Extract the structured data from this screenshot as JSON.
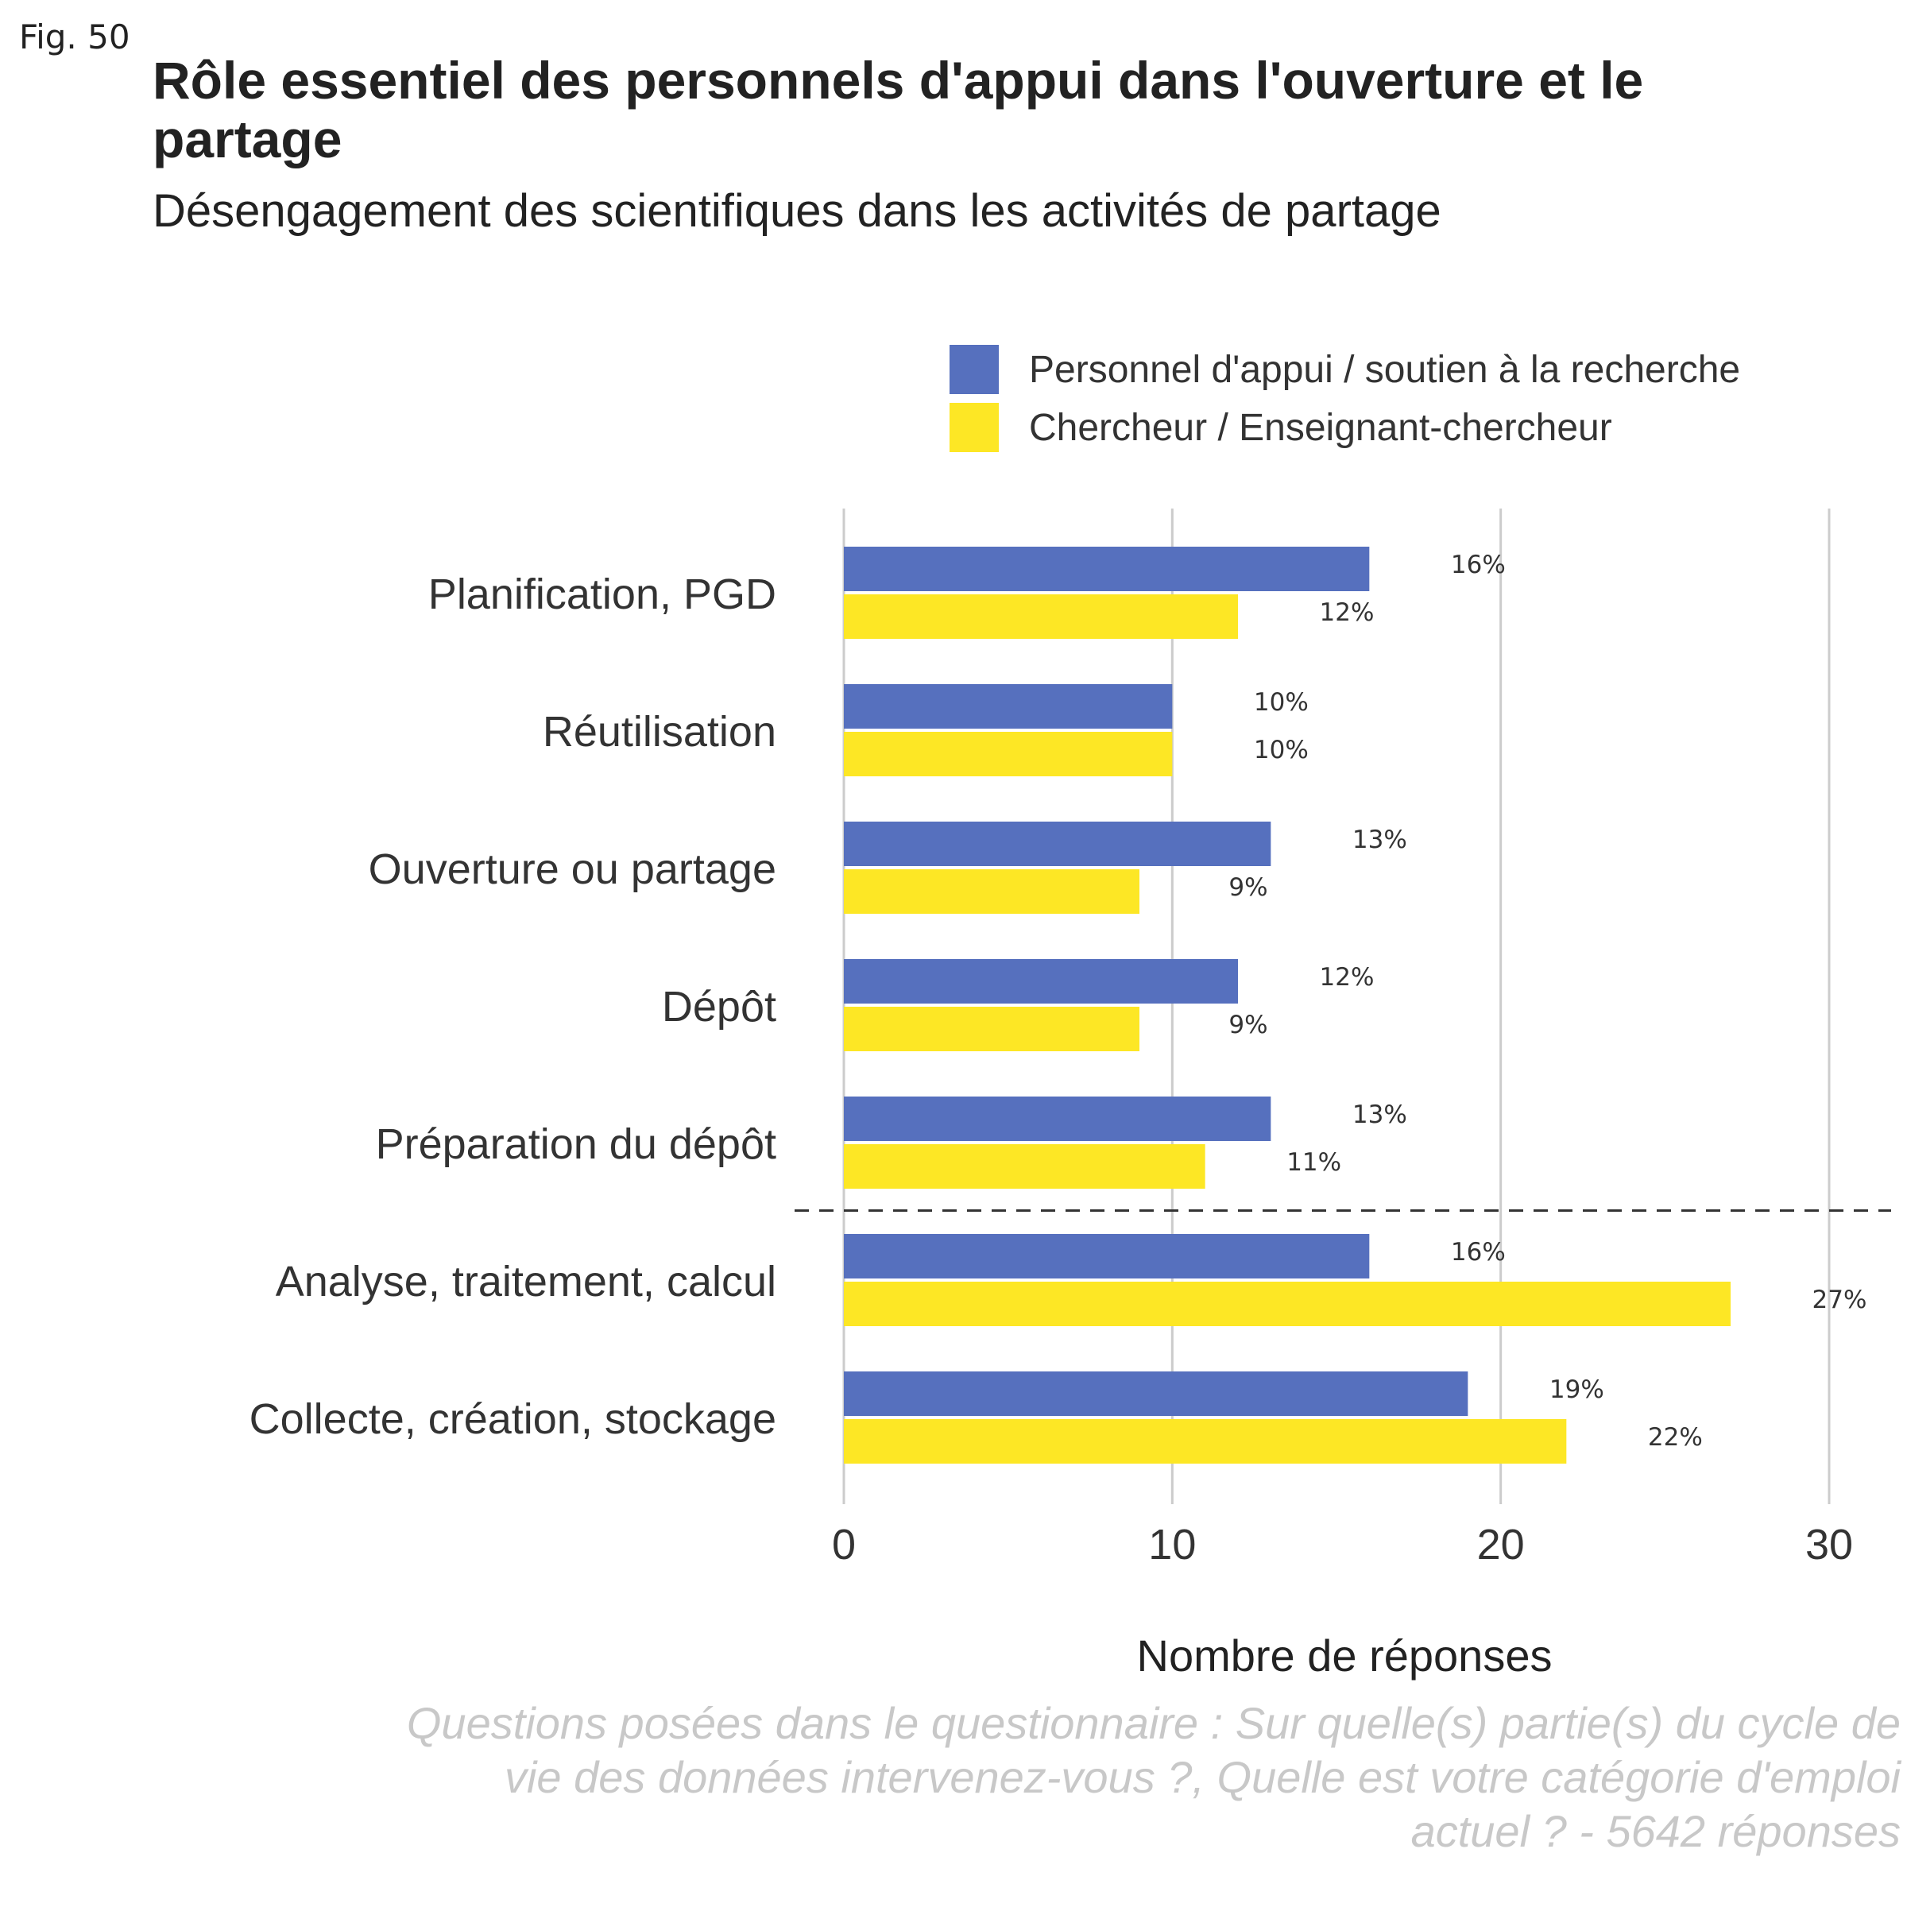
{
  "fig_label": "Fig. 50",
  "title": "Rôle essentiel des personnels d'appui dans l'ouverture et le partage",
  "subtitle": "Désengagement des scientifiques dans les activités de partage",
  "caption": "Questions posées dans le questionnaire : Sur quelle(s) partie(s) du cycle de vie des données intervenez-vous ?, Quelle est votre catégorie d'emploi actuel ? - 5642 réponses",
  "legend": [
    {
      "label": "Personnel d'appui / soutien à la recherche",
      "color": "#5670BE"
    },
    {
      "label": "Chercheur / Enseignant-chercheur",
      "color": "#FDE725"
    }
  ],
  "chart_data": {
    "type": "bar",
    "orientation": "horizontal",
    "categories": [
      "Planification, PGD",
      "Réutilisation",
      "Ouverture ou partage",
      "Dépôt",
      "Préparation du dépôt",
      "Analyse, traitement, calcul",
      "Collecte, création, stockage"
    ],
    "series": [
      {
        "name": "Personnel d'appui / soutien à la recherche",
        "color": "#5670BE",
        "values": [
          16,
          10,
          13,
          12,
          13,
          16,
          19
        ],
        "labels": [
          "16%",
          "10%",
          "13%",
          "12%",
          "13%",
          "16%",
          "19%"
        ]
      },
      {
        "name": "Chercheur / Enseignant-chercheur",
        "color": "#FDE725",
        "values": [
          12,
          10,
          9,
          9,
          11,
          27,
          22
        ],
        "labels": [
          "12%",
          "10%",
          "9%",
          "9%",
          "11%",
          "27%",
          "22%"
        ]
      }
    ],
    "xlabel": "Nombre de réponses",
    "ylabel": "",
    "xlim": [
      0,
      30
    ],
    "xticks": [
      0,
      10,
      20,
      30
    ],
    "separator_after_category": "Préparation du dépôt",
    "grid": "vertical",
    "legend_position": "top-right"
  }
}
